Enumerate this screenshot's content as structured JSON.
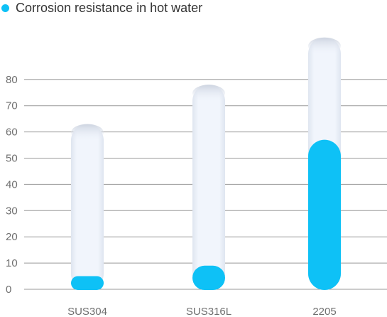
{
  "legend": {
    "label": "Corrosion resistance in hot water",
    "color": "#0ec1f6"
  },
  "chart_data": {
    "type": "bar",
    "categories": [
      "SUS304",
      "SUS316L",
      "2205"
    ],
    "series": [
      {
        "name": "Corrosion resistance in hot water",
        "values": [
          5,
          9,
          57
        ]
      }
    ],
    "track_max": [
      63,
      78,
      96
    ],
    "ylim": [
      0,
      80
    ],
    "yticks": [
      0,
      10,
      20,
      30,
      40,
      50,
      60,
      70,
      80
    ],
    "grid": true,
    "legend_position": "top-left",
    "colors": {
      "bar": "#0ec1f6",
      "track": "#eef3fb",
      "grid": "#9a9a9a"
    }
  }
}
